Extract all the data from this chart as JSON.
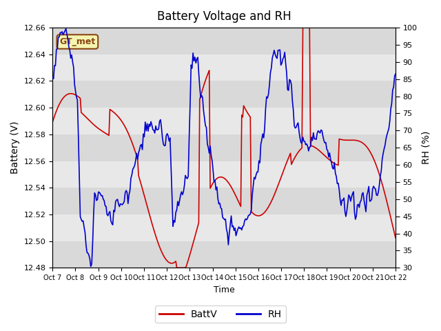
{
  "title": "Battery Voltage and RH",
  "xlabel": "Time",
  "ylabel_left": "Battery (V)",
  "ylabel_right": "RH (%)",
  "station_label": "GT_met",
  "ylim_left": [
    12.48,
    12.66
  ],
  "ylim_right": [
    30,
    100
  ],
  "yticks_left": [
    12.48,
    12.5,
    12.52,
    12.54,
    12.56,
    12.58,
    12.6,
    12.62,
    12.64,
    12.66
  ],
  "yticks_right": [
    30,
    35,
    40,
    45,
    50,
    55,
    60,
    65,
    70,
    75,
    80,
    85,
    90,
    95,
    100
  ],
  "color_batt": "#cc0000",
  "color_rh": "#0000cc",
  "background_color": "#ffffff",
  "plot_bg_color": "#e8e8e8",
  "legend_batt": "BattV",
  "legend_rh": "RH",
  "n_points": 360,
  "x_tick_positions": [
    0,
    24,
    48,
    72,
    96,
    120,
    144,
    168,
    192,
    216,
    240,
    264,
    288,
    312,
    336,
    360
  ],
  "xtick_labels": [
    "Oct 7",
    "Oct 8",
    "Oct 9",
    "Oct 10",
    "Oct 11",
    "Oct 12",
    "Oct 13",
    "Oct 14",
    "Oct 15",
    "Oct 16",
    "Oct 17",
    "Oct 18",
    "Oct 19",
    "Oct 20",
    "Oct 21",
    "Oct 22"
  ]
}
